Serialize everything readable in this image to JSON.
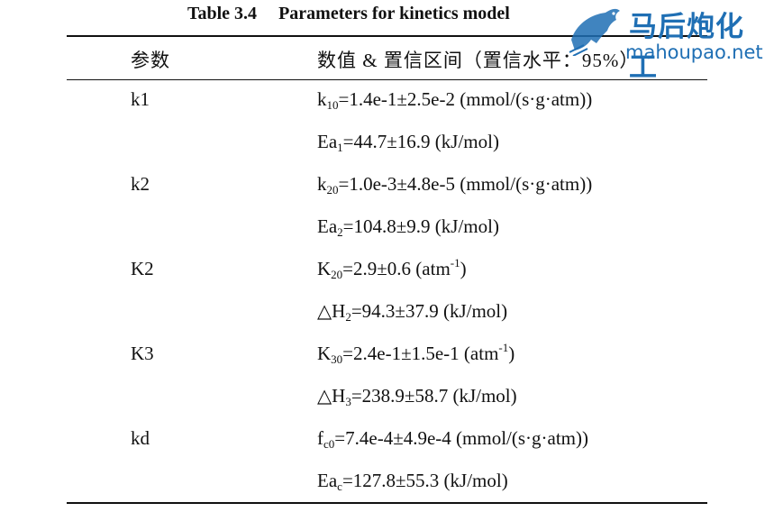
{
  "caption": {
    "label": "Table 3.4",
    "title": "Parameters for kinetics model"
  },
  "header": {
    "col1": "参数",
    "col2": "数值 & 置信区间（置信水平：95%）"
  },
  "rows": [
    {
      "param": "k1",
      "value_parts": [
        [
          "k",
          "n"
        ],
        [
          "10",
          "sub"
        ],
        [
          "=1.4e-1±2.5e-2 (mmol/(s·g·atm))",
          "n"
        ]
      ]
    },
    {
      "param": "",
      "value_parts": [
        [
          "Ea",
          "n"
        ],
        [
          "1",
          "sub"
        ],
        [
          "=44.7±16.9 (kJ/mol)",
          "n"
        ]
      ]
    },
    {
      "param": "k2",
      "value_parts": [
        [
          "k",
          "n"
        ],
        [
          "20",
          "sub"
        ],
        [
          "=1.0e-3±4.8e-5 (mmol/(s·g·atm))",
          "n"
        ]
      ]
    },
    {
      "param": "",
      "value_parts": [
        [
          "Ea",
          "n"
        ],
        [
          "2",
          "sub"
        ],
        [
          "=104.8±9.9 (kJ/mol)",
          "n"
        ]
      ]
    },
    {
      "param": "K2",
      "value_parts": [
        [
          "K",
          "n"
        ],
        [
          "20",
          "sub"
        ],
        [
          "=2.9±0.6 (atm",
          "n"
        ],
        [
          "-1",
          "sup"
        ],
        [
          ")",
          "n"
        ]
      ]
    },
    {
      "param": "",
      "value_parts": [
        [
          "△H",
          "n"
        ],
        [
          "2",
          "sub"
        ],
        [
          "=94.3±37.9 (kJ/mol)",
          "n"
        ]
      ]
    },
    {
      "param": "K3",
      "value_parts": [
        [
          "K",
          "n"
        ],
        [
          "30",
          "sub"
        ],
        [
          "=2.4e-1±1.5e-1 (atm",
          "n"
        ],
        [
          "-1",
          "sup"
        ],
        [
          ")",
          "n"
        ]
      ]
    },
    {
      "param": "",
      "value_parts": [
        [
          "△H",
          "n"
        ],
        [
          "3",
          "sub"
        ],
        [
          "=238.9±58.7 (kJ/mol)",
          "n"
        ]
      ]
    },
    {
      "param": "kd",
      "value_parts": [
        [
          "f",
          "n"
        ],
        [
          "c0",
          "sub"
        ],
        [
          "=7.4e-4±4.9e-4 (mmol/(s·g·atm))",
          "n"
        ]
      ]
    },
    {
      "param": "",
      "value_parts": [
        [
          "Ea",
          "n"
        ],
        [
          "c",
          "sub"
        ],
        [
          "=127.8±55.3 (kJ/mol)",
          "n"
        ]
      ]
    }
  ],
  "watermark": {
    "brand_cn": "马后炮化工",
    "url": "mahoupao.net",
    "color": "#1f6fb4",
    "icon": "horse-logo-icon"
  }
}
